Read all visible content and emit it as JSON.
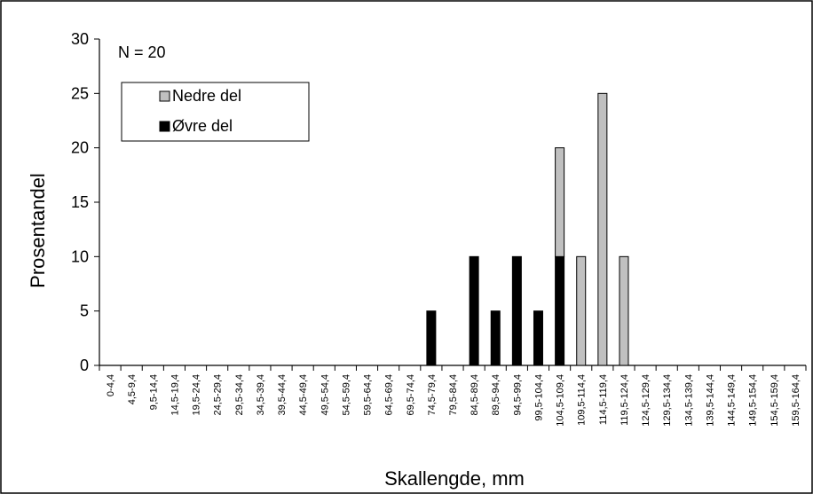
{
  "chart_data": {
    "type": "bar",
    "stacked": true,
    "title": "",
    "annotation": "N = 20",
    "xlabel": "Skallengde, mm",
    "ylabel": "Prosentandel",
    "ylim": [
      0,
      30
    ],
    "yticks": [
      0,
      5,
      10,
      15,
      20,
      25,
      30
    ],
    "grid": false,
    "legend_position": "top-left",
    "categories": [
      "0-4,4",
      "4,5-9,4",
      "9,5-14,4",
      "14,5-19,4",
      "19,5-24,4",
      "24,5-29,4",
      "29,5-34,4",
      "34,5-39,4",
      "39,5-44,4",
      "44,5-49,4",
      "49,5-54,4",
      "54,5-59,4",
      "59,5-64,4",
      "64,5-69,4",
      "69,5-74,4",
      "74,5-79,4",
      "79,5-84,4",
      "84,5-89,4",
      "89,5-94,4",
      "94,5-99,4",
      "99,5-104,4",
      "104,5-109,4",
      "109,5-114,4",
      "114,5-119,4",
      "119,5-124,4",
      "124,5-129,4",
      "129,5-134,4",
      "134,5-139,4",
      "139,5-144,4",
      "144,5-149,4",
      "149,5-154,4",
      "154,5-159,4",
      "159,5-164,4"
    ],
    "series": [
      {
        "name": "Øvre del",
        "color": "#000000",
        "values": [
          0,
          0,
          0,
          0,
          0,
          0,
          0,
          0,
          0,
          0,
          0,
          0,
          0,
          0,
          0,
          5,
          0,
          10,
          5,
          10,
          5,
          10,
          0,
          0,
          0,
          0,
          0,
          0,
          0,
          0,
          0,
          0,
          0
        ]
      },
      {
        "name": "Nedre del",
        "color": "#c0c0c0",
        "values": [
          0,
          0,
          0,
          0,
          0,
          0,
          0,
          0,
          0,
          0,
          0,
          0,
          0,
          0,
          0,
          0,
          0,
          0,
          0,
          0,
          0,
          10,
          10,
          25,
          10,
          0,
          0,
          0,
          0,
          0,
          0,
          0,
          0
        ]
      }
    ],
    "legend_order": [
      "Nedre del",
      "Øvre del"
    ]
  }
}
